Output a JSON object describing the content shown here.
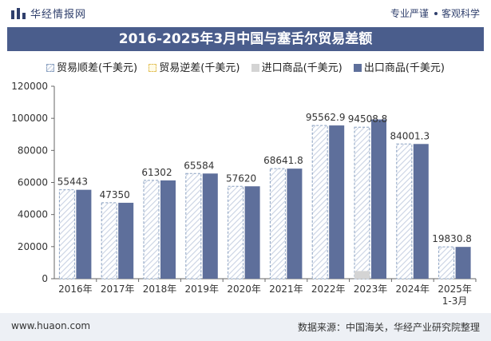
{
  "header": {
    "logo_text": "华经情报网",
    "tagline_left": "专业严谨",
    "tagline_right": "客观科学"
  },
  "title": "2016-2025年3月中国与塞舌尔贸易差额",
  "legend": {
    "surplus": "贸易顺差(千美元)",
    "deficit": "贸易逆差(千美元)",
    "import": "进口商品(千美元)",
    "export": "出口商品(千美元)"
  },
  "colors": {
    "export": "#5e6f9b",
    "import": "#d4d4d4",
    "surplus_edge": "#8aa1c1",
    "title_bar": "#4a5d8c"
  },
  "chart_data": {
    "type": "bar",
    "categories": [
      "2016年",
      "2017年",
      "2018年",
      "2019年",
      "2020年",
      "2021年",
      "2022年",
      "2023年",
      "2024年",
      "2025年\n1-3月"
    ],
    "series": [
      {
        "name": "贸易顺差(千美元)",
        "values": [
          55443,
          47350,
          61302,
          65584,
          57620,
          68641.8,
          95562.9,
          94508.8,
          84001.3,
          19830.8
        ]
      },
      {
        "name": "贸易逆差(千美元)",
        "values": [
          0,
          0,
          0,
          0,
          0,
          0,
          0,
          0,
          0,
          0
        ]
      },
      {
        "name": "进口商品(千美元)",
        "values": [
          0,
          0,
          0,
          0,
          0,
          0,
          0,
          4800,
          0,
          0
        ]
      },
      {
        "name": "出口商品(千美元)",
        "values": [
          55443,
          47350,
          61302,
          65584,
          57620,
          68641.8,
          95562.9,
          99308.8,
          84001.3,
          19830.8
        ]
      }
    ],
    "data_labels": [
      "55443",
      "47350",
      "61302",
      "65584",
      "57620",
      "68641.8",
      "95562.9",
      "94508.8",
      "84001.3",
      "19830.8"
    ],
    "ylim": [
      0,
      120000
    ],
    "yticks": [
      "0",
      "20000",
      "40000",
      "60000",
      "80000",
      "100000",
      "120000"
    ],
    "grid": false,
    "legend_position": "top"
  },
  "footer": {
    "website": "www.huaon.com",
    "source": "数据来源：中国海关，华经产业研究院整理"
  }
}
